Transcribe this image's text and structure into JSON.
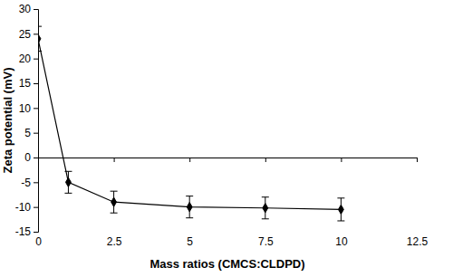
{
  "chart_data": {
    "type": "line",
    "x_label": "Mass ratios (CMCS:CLDPD)",
    "y_label": "Zeta potential (mV)",
    "x": [
      0,
      1,
      2.5,
      5,
      7.5,
      10
    ],
    "series": [
      {
        "values": [
          24,
          -5,
          -9,
          -10,
          -10.2,
          -10.5
        ],
        "error": [
          2.5,
          2.2,
          2.2,
          2.2,
          2.2,
          2.3
        ],
        "color": "#000000",
        "marker": "diamond",
        "line_style": "solid"
      }
    ],
    "xlim": [
      0,
      12.5
    ],
    "xticks": [
      0,
      2.5,
      5,
      7.5,
      10,
      12.5
    ],
    "ylim": [
      -15,
      30
    ],
    "yticks": [
      -15,
      -10,
      -5,
      0,
      5,
      10,
      15,
      20,
      25,
      30
    ],
    "grid": false
  }
}
